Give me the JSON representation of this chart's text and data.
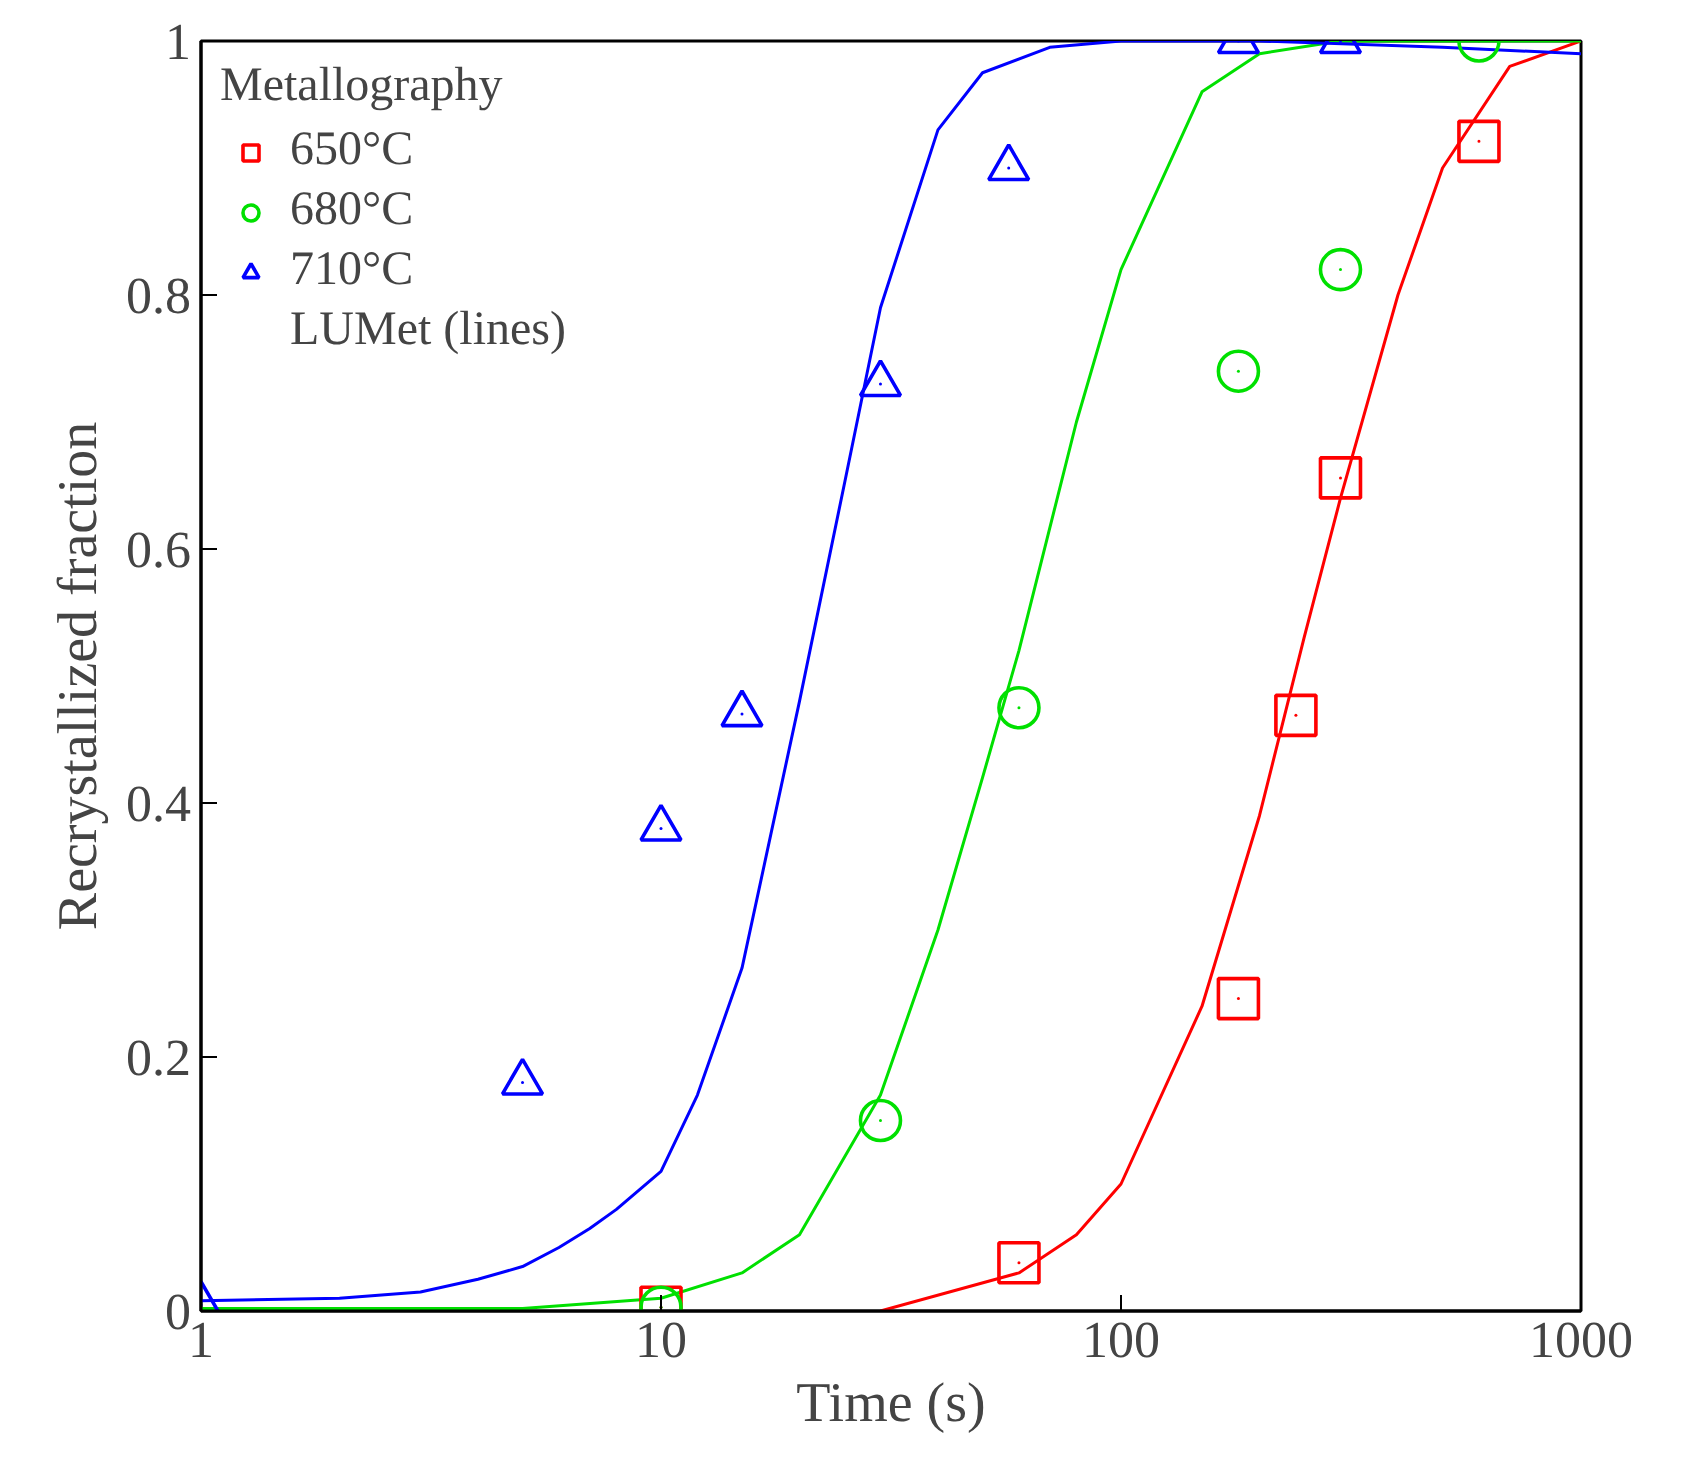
{
  "chart_data": {
    "type": "scatter",
    "xlabel": "Time (s)",
    "ylabel": "Recrystallized fraction",
    "legend_title": "Metallography",
    "log": "x",
    "xlim": [
      1,
      1000
    ],
    "ylim": [
      0,
      1
    ],
    "xticks": [
      1,
      10,
      100,
      1000
    ],
    "yticks": [
      0,
      0.2,
      0.4,
      0.6,
      0.8,
      1
    ],
    "grid": false,
    "legend": "top left",
    "annotations": [
      "LUMet (lines)"
    ],
    "series": [
      {
        "name": "650°C",
        "color": "#ff0000",
        "marker": "square",
        "x": [
          10,
          60,
          180,
          240,
          300,
          600
        ],
        "values": [
          0.003,
          0.038,
          0.246,
          0.469,
          0.656,
          0.921
        ]
      },
      {
        "name": "680°C",
        "color": "#00e000",
        "marker": "circle",
        "x": [
          10,
          30,
          60,
          180,
          300,
          600
        ],
        "values": [
          0.003,
          0.15,
          0.475,
          0.74,
          0.82,
          1.0
        ]
      },
      {
        "name": "710°C",
        "color": "#0000ff",
        "marker": "triangle",
        "x": [
          1,
          5,
          10,
          15,
          30,
          57,
          180,
          300
        ],
        "values": [
          0.005,
          0.18,
          0.38,
          0.47,
          0.73,
          0.9,
          1.0,
          1.0
        ]
      },
      {
        "type": "line",
        "color": "#ff0000",
        "x": [
          30,
          60,
          80,
          100,
          150,
          200,
          250,
          300,
          400,
          500,
          700,
          1000
        ],
        "values": [
          0.0,
          0.03,
          0.06,
          0.1,
          0.24,
          0.39,
          0.53,
          0.64,
          0.8,
          0.9,
          0.98,
          1.0
        ]
      },
      {
        "type": "line",
        "color": "#00e000",
        "x": [
          1,
          5,
          10,
          15,
          20,
          30,
          40,
          50,
          60,
          80,
          100,
          150,
          200,
          300,
          1000
        ],
        "values": [
          0.002,
          0.002,
          0.01,
          0.03,
          0.06,
          0.17,
          0.3,
          0.42,
          0.52,
          0.7,
          0.82,
          0.96,
          0.99,
          1.0,
          1.0
        ]
      },
      {
        "type": "line",
        "color": "#0000ff",
        "x": [
          1,
          2,
          3,
          4,
          5,
          6,
          7,
          8,
          10,
          12,
          15,
          20,
          25,
          30,
          40,
          50,
          70,
          100,
          200,
          500,
          1000
        ],
        "values": [
          0.008,
          0.01,
          0.015,
          0.025,
          0.035,
          0.05,
          0.065,
          0.08,
          0.11,
          0.17,
          0.27,
          0.48,
          0.65,
          0.79,
          0.93,
          0.975,
          0.995,
          1.0,
          1.0,
          0.995,
          0.99
        ]
      }
    ]
  }
}
